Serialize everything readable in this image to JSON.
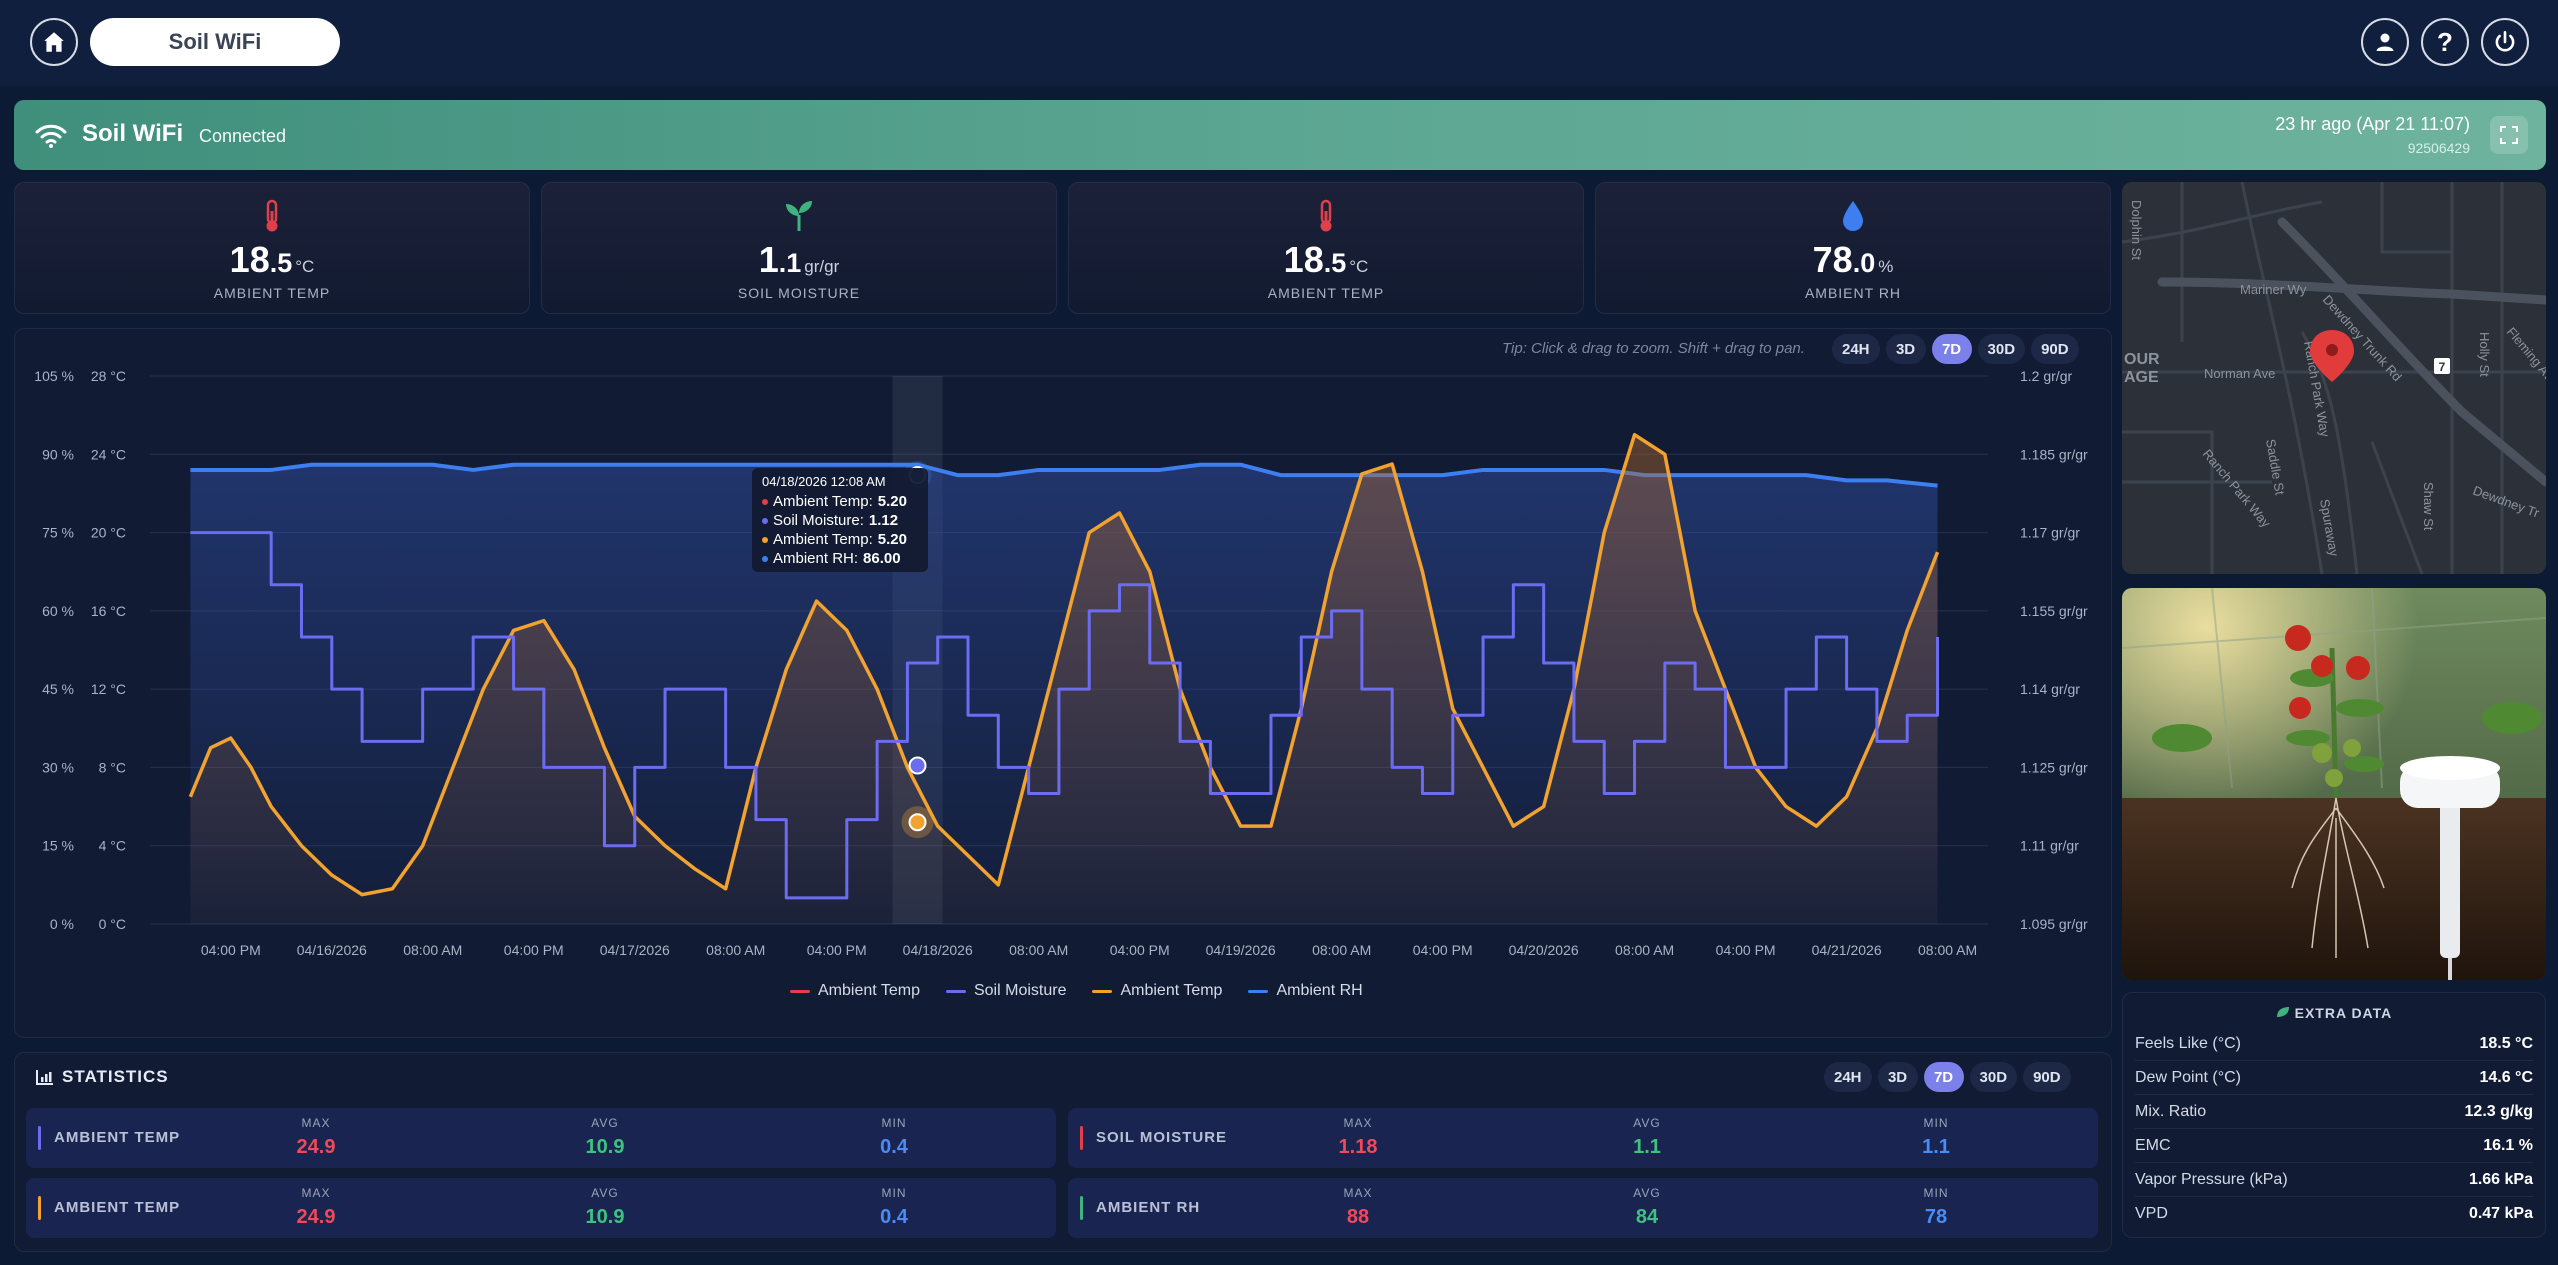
{
  "app": {
    "title": "Soil WiFi"
  },
  "icons": {
    "home": "home-icon",
    "user": "user-icon",
    "help": "help-icon",
    "power": "power-icon",
    "wifi": "wifi-icon",
    "fullscreen": "fullscreen-icon",
    "thermometer": "thermometer-icon",
    "sprout": "sprout-icon",
    "droplet": "droplet-icon",
    "chart": "chart-icon",
    "leaf": "leaf-icon",
    "pin": "map-pin-icon"
  },
  "banner": {
    "device": "Soil WiFi",
    "status": "Connected",
    "last_seen": "23 hr ago (Apr 21 11:07)",
    "serial": "92506429"
  },
  "cards": [
    {
      "int": "18",
      "dec": ".5",
      "unit": "°C",
      "label": "AMBIENT TEMP",
      "color": "#e0404a"
    },
    {
      "int": "1",
      "dec": ".1",
      "unit": "gr/gr",
      "label": "SOIL MOISTURE",
      "color": "#3fb37f"
    },
    {
      "int": "18",
      "dec": ".5",
      "unit": "°C",
      "label": "AMBIENT TEMP",
      "color": "#e0404a"
    },
    {
      "int": "78",
      "dec": ".0",
      "unit": "%",
      "label": "AMBIENT RH",
      "color": "#3d7ff0"
    }
  ],
  "chart": {
    "tip": "Tip: Click & drag to zoom. Shift + drag to pan.",
    "ranges": [
      "24H",
      "3D",
      "7D",
      "30D",
      "90D"
    ],
    "active_range": "7D",
    "tooltip": {
      "time": "04/18/2026 12:08 AM",
      "rows": [
        {
          "name": "Ambient Temp:",
          "value": "5.20",
          "color": "#e0404a"
        },
        {
          "name": "Soil Moisture:",
          "value": "1.12",
          "color": "#6b6cf0"
        },
        {
          "name": "Ambient Temp:",
          "value": "5.20",
          "color": "#f2a22e"
        },
        {
          "name": "Ambient RH:",
          "value": "86.00",
          "color": "#3d7ff0"
        }
      ]
    }
  },
  "chart_data": {
    "type": "line",
    "x_ticks": [
      "04:00 PM",
      "04/16/2026",
      "08:00 AM",
      "04:00 PM",
      "04/17/2026",
      "08:00 AM",
      "04:00 PM",
      "04/18/2026",
      "08:00 AM",
      "04:00 PM",
      "04/19/2026",
      "08:00 AM",
      "04:00 PM",
      "04/20/2026",
      "08:00 AM",
      "04:00 PM",
      "04/21/2026",
      "08:00 AM"
    ],
    "x_range_hours": [
      -12,
      170
    ],
    "y_left_pct": {
      "ticks": [
        "105 %",
        "90 %",
        "75 %",
        "60 %",
        "45 %",
        "30 %",
        "15 %",
        "0 %"
      ],
      "range": [
        0,
        105
      ]
    },
    "y_left_temp": {
      "ticks": [
        "28 °C",
        "24 °C",
        "20 °C",
        "16 °C",
        "12 °C",
        "8 °C",
        "4 °C",
        "0 °C"
      ],
      "range": [
        0,
        28
      ]
    },
    "y_right": {
      "ticks": [
        "1.2 gr/gr",
        "1.185 gr/gr",
        "1.17 gr/gr",
        "1.155 gr/gr",
        "1.14 gr/gr",
        "1.125 gr/gr",
        "1.11 gr/gr",
        "1.095 gr/gr"
      ],
      "range": [
        1.095,
        1.2
      ]
    },
    "grid": true,
    "legend_position": "bottom",
    "series": [
      {
        "name": "Ambient Temp",
        "color": "#e0404a",
        "axis": "temp",
        "x": [],
        "values": []
      },
      {
        "name": "Soil Moisture",
        "color": "#6b6cf0",
        "axis": "right",
        "x": [
          -8,
          -4,
          0,
          3,
          6,
          9,
          12,
          15,
          20,
          24,
          27,
          30,
          33,
          36,
          39,
          42,
          45,
          48,
          51,
          54,
          57,
          60,
          63,
          66,
          69,
          72,
          75,
          78,
          81,
          84,
          87,
          90,
          93,
          96,
          99,
          102,
          105,
          108,
          111,
          114,
          117,
          120,
          123,
          126,
          129,
          132,
          135,
          138,
          141,
          144,
          147,
          150,
          153,
          156,
          159,
          162,
          165
        ],
        "values": [
          1.17,
          1.17,
          1.16,
          1.15,
          1.14,
          1.13,
          1.13,
          1.14,
          1.15,
          1.14,
          1.125,
          1.125,
          1.11,
          1.125,
          1.14,
          1.14,
          1.125,
          1.115,
          1.1,
          1.1,
          1.115,
          1.13,
          1.145,
          1.15,
          1.135,
          1.125,
          1.12,
          1.14,
          1.155,
          1.16,
          1.145,
          1.13,
          1.12,
          1.12,
          1.135,
          1.15,
          1.155,
          1.14,
          1.125,
          1.12,
          1.135,
          1.15,
          1.16,
          1.145,
          1.13,
          1.12,
          1.13,
          1.145,
          1.14,
          1.125,
          1.125,
          1.14,
          1.15,
          1.14,
          1.13,
          1.135,
          1.15
        ]
      },
      {
        "name": "Ambient Temp",
        "color": "#f2a22e",
        "axis": "temp",
        "x": [
          -8,
          -6,
          -4,
          -2,
          0,
          3,
          6,
          9,
          12,
          15,
          18,
          21,
          24,
          27,
          30,
          33,
          36,
          39,
          42,
          45,
          48,
          51,
          54,
          57,
          60,
          63,
          66,
          69,
          72,
          75,
          78,
          81,
          84,
          87,
          90,
          93,
          96,
          99,
          102,
          105,
          108,
          111,
          114,
          117,
          120,
          123,
          126,
          129,
          132,
          135,
          138,
          141,
          144,
          147,
          150,
          153,
          156,
          159,
          162,
          165
        ],
        "values": [
          6.5,
          9,
          9.5,
          8,
          6,
          4,
          2.5,
          1.5,
          1.8,
          4,
          8,
          12,
          15,
          15.5,
          13,
          9,
          5.5,
          4,
          2.8,
          1.8,
          8,
          13,
          16.5,
          15,
          12,
          8,
          5,
          3.5,
          2,
          8,
          14,
          20,
          21,
          18,
          12,
          8,
          5,
          5,
          11,
          18,
          23,
          23.5,
          18,
          11,
          8,
          5,
          6,
          12,
          20,
          25,
          24,
          16,
          12,
          8,
          6,
          5,
          6.5,
          10,
          15,
          19
        ]
      },
      {
        "name": "Ambient RH",
        "color": "#3d7ff0",
        "axis": "pct",
        "x": [
          -8,
          -4,
          0,
          4,
          8,
          12,
          16,
          20,
          24,
          28,
          32,
          36,
          40,
          44,
          48,
          52,
          56,
          60,
          64,
          68,
          72,
          76,
          80,
          84,
          88,
          92,
          96,
          100,
          104,
          108,
          112,
          116,
          120,
          124,
          128,
          132,
          136,
          140,
          144,
          148,
          152,
          156,
          160,
          165
        ],
        "values": [
          87,
          87,
          87,
          88,
          88,
          88,
          88,
          87,
          88,
          88,
          88,
          88,
          88,
          88,
          88,
          88,
          88,
          88,
          88,
          86,
          86,
          87,
          87,
          87,
          87,
          88,
          88,
          86,
          86,
          86,
          86,
          86,
          87,
          87,
          87,
          87,
          86,
          86,
          86,
          86,
          86,
          85,
          85,
          84
        ]
      }
    ]
  },
  "stats": {
    "title": "STATISTICS",
    "ranges": [
      "24H",
      "3D",
      "7D",
      "30D",
      "90D"
    ],
    "active_range": "7D",
    "headers": {
      "max": "MAX",
      "avg": "AVG",
      "min": "MIN"
    },
    "rows": [
      {
        "name": "AMBIENT TEMP",
        "bar": "#6b6cf0",
        "max": "24.9",
        "avg": "10.9",
        "min": "0.4"
      },
      {
        "name": "SOIL MOISTURE",
        "bar": "#e0404a",
        "max": "1.18",
        "avg": "1.1",
        "min": "1.1"
      },
      {
        "name": "AMBIENT TEMP",
        "bar": "#f2a22e",
        "max": "24.9",
        "avg": "10.9",
        "min": "0.4"
      },
      {
        "name": "AMBIENT RH",
        "bar": "#3fb37f",
        "max": "88",
        "avg": "84",
        "min": "78"
      }
    ],
    "colors": {
      "max": "#ef4a5a",
      "avg": "#3fc27f",
      "min": "#4a8cf5"
    }
  },
  "map": {
    "labels": [
      "Mariner Wy",
      "Dewdney Trunk Rd",
      "Norman Ave",
      "Ranch Park Way",
      "Saddle St",
      "Spuraway",
      "Shaw St",
      "Holly St",
      "Fleming Av",
      "Dewdney Tr",
      "Dolphin St",
      "Ranch Park Way",
      "OUR",
      "AGE",
      "7"
    ]
  },
  "extra": {
    "title": "EXTRA DATA",
    "rows": [
      {
        "k": "Feels Like (°C)",
        "v": "18.5 °C"
      },
      {
        "k": "Dew Point (°C)",
        "v": "14.6 °C"
      },
      {
        "k": "Mix. Ratio",
        "v": "12.3 g/kg"
      },
      {
        "k": "EMC",
        "v": "16.1 %"
      },
      {
        "k": "Vapor Pressure (kPa)",
        "v": "1.66 kPa"
      },
      {
        "k": "VPD",
        "v": "0.47 kPa"
      }
    ]
  }
}
